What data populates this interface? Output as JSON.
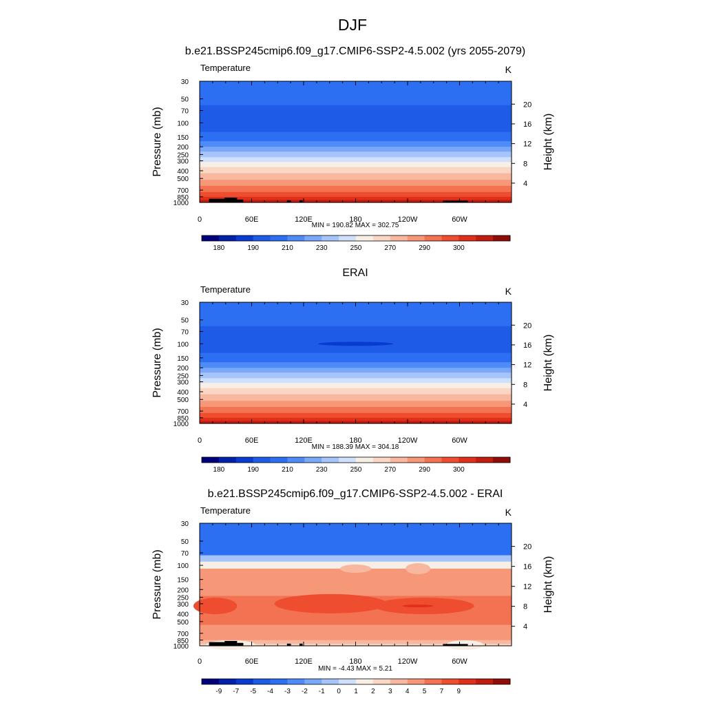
{
  "page_title": "DJF",
  "chart_data": [
    {
      "type": "heatmap",
      "title": "b.e21.BSSP245cmip6.f09_g17.CMIP6-SSP2-4.5.002 (yrs 2055-2079)",
      "left_label": "Temperature",
      "units": "K",
      "ylabel": "Pressure (mb)",
      "y2label": "Height (km)",
      "x_ticks": [
        "0",
        "60E",
        "120E",
        "180",
        "120W",
        "60W"
      ],
      "y_ticks": [
        "30",
        "50",
        "70",
        "100",
        "150",
        "200",
        "250",
        "300",
        "400",
        "500",
        "700",
        "850",
        "1000"
      ],
      "y2_ticks": [
        "20",
        "16",
        "12",
        "8",
        "4"
      ],
      "stats": "MIN = 190.82  MAX = 302.75",
      "colorbar_labels": [
        "180",
        "190",
        "210",
        "230",
        "250",
        "270",
        "290",
        "300"
      ],
      "colors": [
        "#00007a",
        "#0021a8",
        "#0a3bd0",
        "#1e5be6",
        "#2d6ff2",
        "#4f8bf6",
        "#7aa8f8",
        "#a6c4fa",
        "#cfe0fc",
        "#f7efe6",
        "#f9d7c4",
        "#f8b89f",
        "#f69778",
        "#f37252",
        "#ee4e2f",
        "#e0301b",
        "#c01c10",
        "#8f0d08"
      ],
      "profile": [
        {
          "p": 30,
          "band": 4
        },
        {
          "p": 45,
          "band": 4
        },
        {
          "p": 60,
          "band": 3
        },
        {
          "p": 100,
          "band": 3
        },
        {
          "p": 130,
          "band": 4
        },
        {
          "p": 170,
          "band": 5
        },
        {
          "p": 200,
          "band": 6
        },
        {
          "p": 230,
          "band": 7
        },
        {
          "p": 270,
          "band": 8
        },
        {
          "p": 310,
          "band": 9
        },
        {
          "p": 360,
          "band": 10
        },
        {
          "p": 430,
          "band": 11
        },
        {
          "p": 520,
          "band": 12
        },
        {
          "p": 620,
          "band": 13
        },
        {
          "p": 740,
          "band": 14
        },
        {
          "p": 850,
          "band": 15
        },
        {
          "p": 930,
          "band": 16
        },
        {
          "p": 1000,
          "band": 16
        }
      ],
      "terrain": true
    },
    {
      "type": "heatmap",
      "title": "ERAI",
      "left_label": "Temperature",
      "units": "K",
      "ylabel": "Pressure (mb)",
      "y2label": "Height (km)",
      "x_ticks": [
        "0",
        "60E",
        "120E",
        "180",
        "120W",
        "60W"
      ],
      "y_ticks": [
        "30",
        "50",
        "70",
        "100",
        "150",
        "200",
        "250",
        "300",
        "400",
        "500",
        "700",
        "850",
        "1000"
      ],
      "y2_ticks": [
        "20",
        "16",
        "12",
        "8",
        "4"
      ],
      "stats": "MIN = 188.39  MAX = 304.18",
      "colorbar_labels": [
        "180",
        "190",
        "210",
        "230",
        "250",
        "270",
        "290",
        "300"
      ],
      "colors": [
        "#00007a",
        "#0021a8",
        "#0a3bd0",
        "#1e5be6",
        "#2d6ff2",
        "#4f8bf6",
        "#7aa8f8",
        "#a6c4fa",
        "#cfe0fc",
        "#f7efe6",
        "#f9d7c4",
        "#f8b89f",
        "#f69778",
        "#f37252",
        "#ee4e2f",
        "#e0301b",
        "#c01c10",
        "#8f0d08"
      ],
      "profile": [
        {
          "p": 30,
          "band": 4
        },
        {
          "p": 45,
          "band": 4
        },
        {
          "p": 60,
          "band": 3
        },
        {
          "p": 100,
          "band": 3
        },
        {
          "p": 130,
          "band": 4
        },
        {
          "p": 170,
          "band": 5
        },
        {
          "p": 200,
          "band": 6
        },
        {
          "p": 230,
          "band": 7
        },
        {
          "p": 270,
          "band": 8
        },
        {
          "p": 310,
          "band": 9
        },
        {
          "p": 360,
          "band": 10
        },
        {
          "p": 430,
          "band": 11
        },
        {
          "p": 520,
          "band": 12
        },
        {
          "p": 620,
          "band": 13
        },
        {
          "p": 740,
          "band": 14
        },
        {
          "p": 850,
          "band": 15
        },
        {
          "p": 930,
          "band": 16
        },
        {
          "p": 1000,
          "band": 16
        }
      ],
      "terrain": false
    },
    {
      "type": "heatmap",
      "title": "b.e21.BSSP245cmip6.f09_g17.CMIP6-SSP2-4.5.002 - ERAI",
      "left_label": "Temperature",
      "units": "K",
      "ylabel": "Pressure (mb)",
      "y2label": "Height (km)",
      "x_ticks": [
        "0",
        "60E",
        "120E",
        "180",
        "120W",
        "60W"
      ],
      "y_ticks": [
        "30",
        "50",
        "70",
        "100",
        "150",
        "200",
        "250",
        "300",
        "400",
        "500",
        "700",
        "850",
        "1000"
      ],
      "y2_ticks": [
        "20",
        "16",
        "12",
        "8",
        "4"
      ],
      "stats": "MIN =  -4.43  MAX =   5.21",
      "colorbar_labels": [
        "-9",
        "-7",
        "-5",
        "-4",
        "-3",
        "-2",
        "-1",
        "0",
        "1",
        "2",
        "3",
        "4",
        "5",
        "7",
        "9"
      ],
      "colors": [
        "#00007a",
        "#0021a8",
        "#0a3bd0",
        "#1e5be6",
        "#2d6ff2",
        "#4f8bf6",
        "#7aa8f8",
        "#a6c4fa",
        "#cfe0fc",
        "#f7efe6",
        "#f9d7c4",
        "#f8b89f",
        "#f69778",
        "#f37252",
        "#ee4e2f",
        "#e0301b",
        "#c01c10",
        "#8f0d08"
      ],
      "profile": [
        {
          "p": 30,
          "band": 4
        },
        {
          "p": 60,
          "band": 4
        },
        {
          "p": 75,
          "band": 7
        },
        {
          "p": 90,
          "band": 9
        },
        {
          "p": 110,
          "band": 12
        },
        {
          "p": 180,
          "band": 12
        },
        {
          "p": 240,
          "band": 13
        },
        {
          "p": 400,
          "band": 13
        },
        {
          "p": 550,
          "band": 12
        },
        {
          "p": 700,
          "band": 12
        },
        {
          "p": 850,
          "band": 11
        },
        {
          "p": 950,
          "band": 10
        },
        {
          "p": 1000,
          "band": 10
        }
      ],
      "terrain": true
    }
  ]
}
